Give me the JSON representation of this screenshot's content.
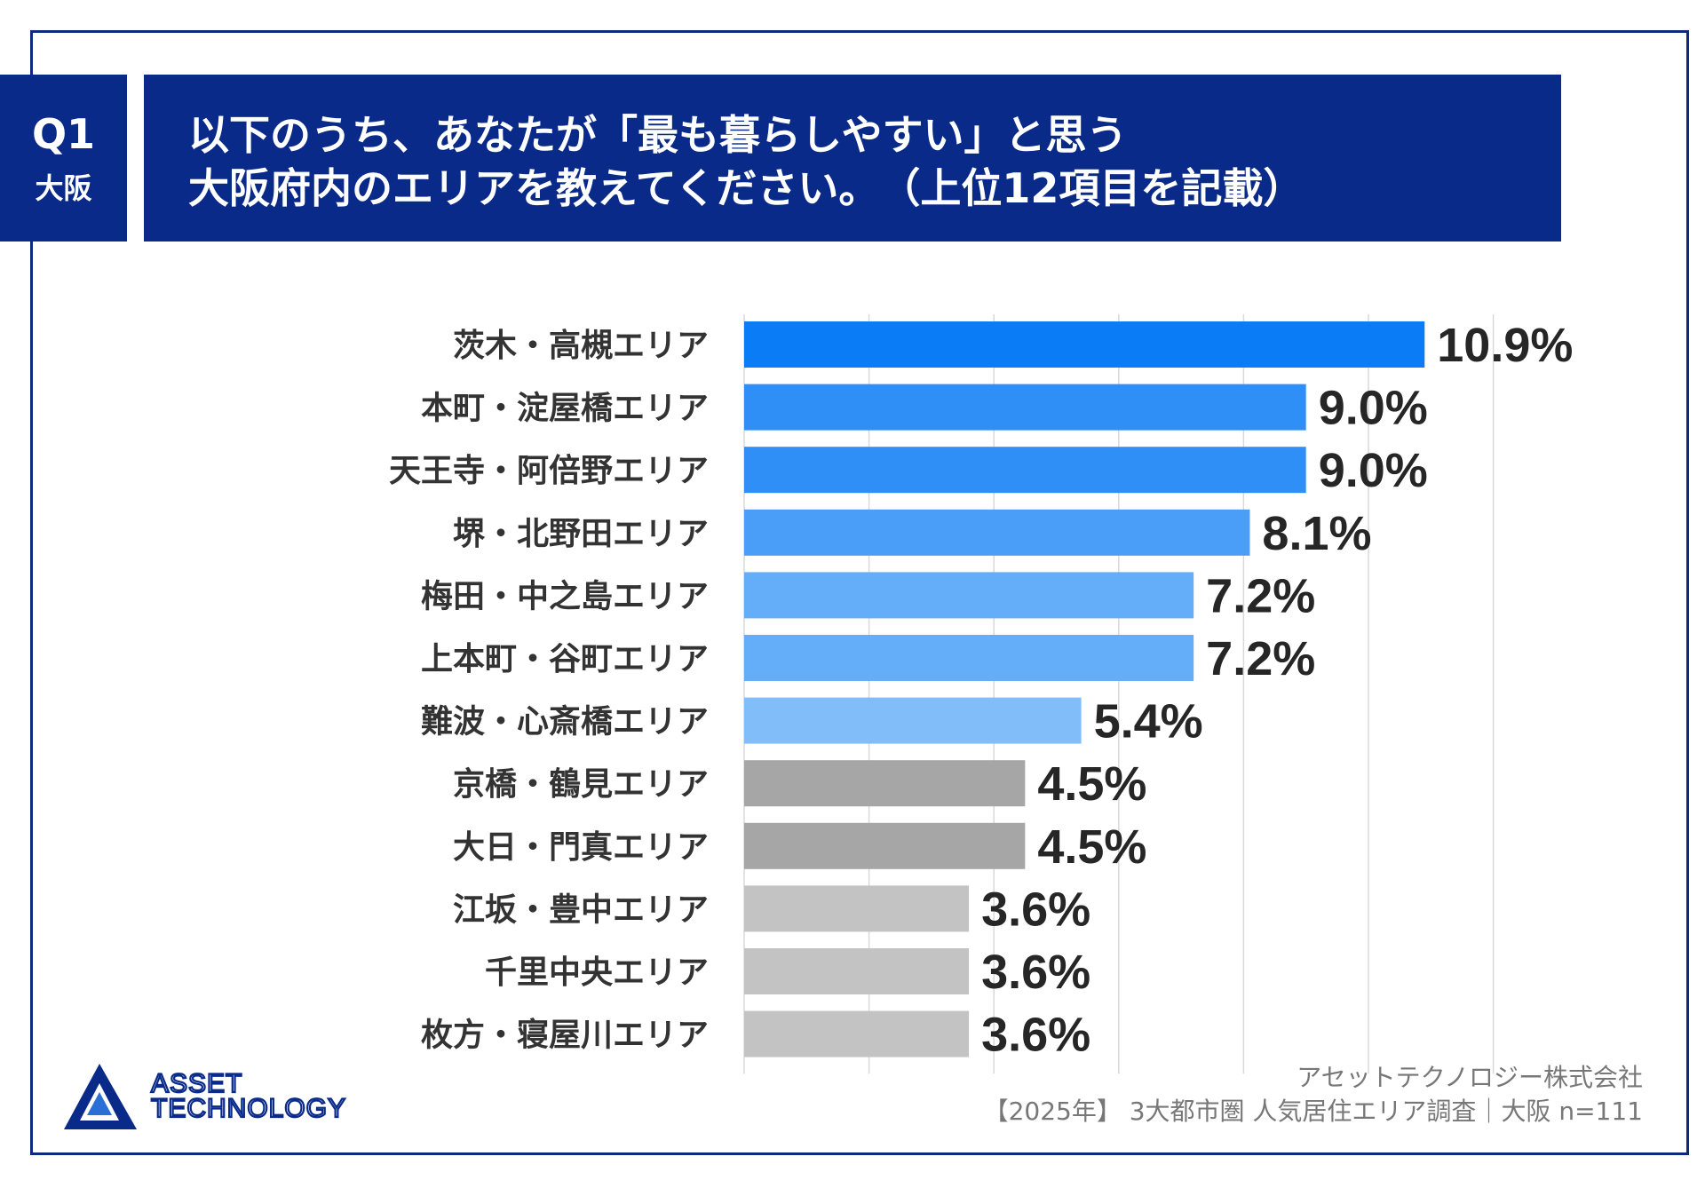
{
  "header": {
    "q_number": "Q1",
    "q_region": "大阪",
    "title_line1": "以下のうち、あなたが「最も暮らしやすい」と思う",
    "title_line2": "大阪府内のエリアを教えてください。　（上位12項目を記載）"
  },
  "chart_data": {
    "type": "bar",
    "orientation": "horizontal",
    "title": "",
    "xlabel": "",
    "ylabel": "",
    "categories": [
      "茨木・高槻エリア",
      "本町・淀屋橋エリア",
      "天王寺・阿倍野エリア",
      "堺・北野田エリア",
      "梅田・中之島エリア",
      "上本町・谷町エリア",
      "難波・心斎橋エリア",
      "京橋・鶴見エリア",
      "大日・門真エリア",
      "江坂・豊中エリア",
      "千里中央エリア",
      "枚方・寝屋川エリア"
    ],
    "values": [
      10.9,
      9.0,
      9.0,
      8.1,
      7.2,
      7.2,
      5.4,
      4.5,
      4.5,
      3.6,
      3.6,
      3.6
    ],
    "value_labels": [
      "10.9%",
      "9.0%",
      "9.0%",
      "8.1%",
      "7.2%",
      "7.2%",
      "5.4%",
      "4.5%",
      "4.5%",
      "3.6%",
      "3.6%",
      "3.6%"
    ],
    "bar_colors": [
      "#0a7cf5",
      "#2f8ff6",
      "#2f8ff6",
      "#4a9ef7",
      "#64adf8",
      "#64adf8",
      "#80bdf9",
      "#a6a6a6",
      "#a6a6a6",
      "#c3c3c3",
      "#c3c3c3",
      "#c3c3c3"
    ],
    "xlim": [
      0,
      12
    ],
    "gridlines": [
      2,
      4,
      6,
      8,
      10,
      12
    ],
    "grid": true,
    "legend": "none"
  },
  "footer": {
    "company": "アセットテクノロジー株式会社",
    "survey": "【2025年】 3大都市圏 人気居住エリア調査｜大阪 n=111"
  },
  "logo": {
    "line1": "ASSET",
    "line2": "TECHNOLOGY"
  },
  "colors": {
    "header_bg": "#0a2a8a",
    "frame": "#0d2a7f",
    "grid": "#d9d9d9",
    "label_text": "#333333",
    "value_text": "#262626"
  }
}
